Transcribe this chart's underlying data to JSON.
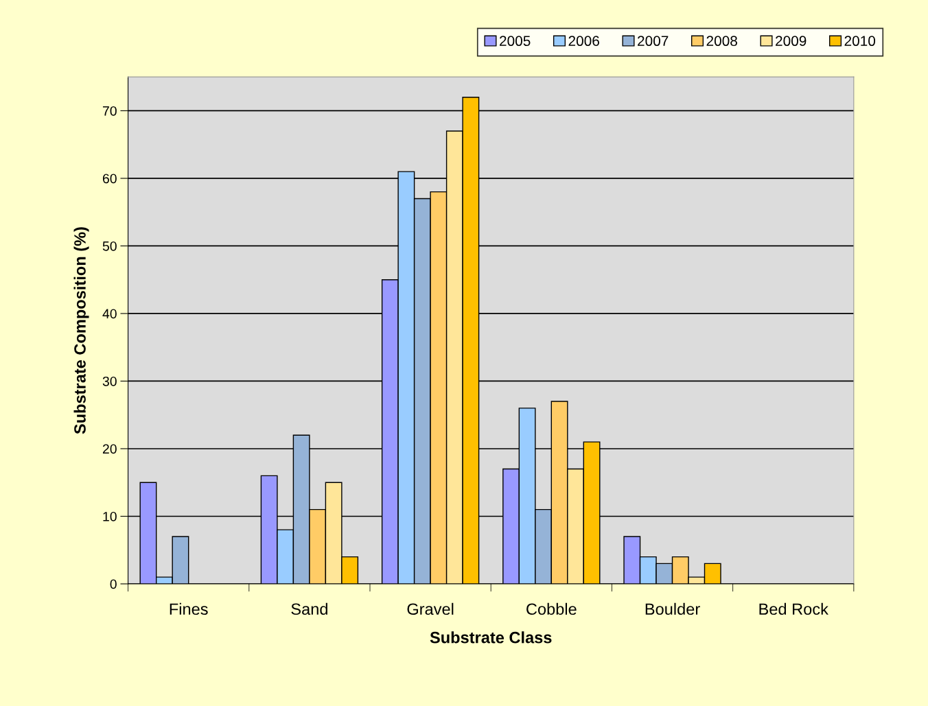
{
  "chart_data": {
    "type": "bar",
    "xlabel": "Substrate Class",
    "ylabel": "Substrate Composition (%)",
    "categories": [
      "Fines",
      "Sand",
      "Gravel",
      "Cobble",
      "Boulder",
      "Bed Rock"
    ],
    "series": [
      {
        "name": "2005",
        "color": "#9999ff",
        "values": [
          15,
          16,
          45,
          17,
          7,
          null
        ]
      },
      {
        "name": "2006",
        "color": "#99ccff",
        "values": [
          1,
          8,
          61,
          26,
          4,
          null
        ]
      },
      {
        "name": "2007",
        "color": "#95b3d7",
        "values": [
          7,
          22,
          57,
          11,
          3,
          null
        ]
      },
      {
        "name": "2008",
        "color": "#ffcc66",
        "values": [
          null,
          11,
          58,
          27,
          4,
          null
        ]
      },
      {
        "name": "2009",
        "color": "#ffe699",
        "values": [
          null,
          15,
          67,
          17,
          1,
          null
        ]
      },
      {
        "name": "2010",
        "color": "#ffc000",
        "values": [
          null,
          4,
          72,
          21,
          3,
          null
        ]
      }
    ],
    "ylim": [
      0,
      75
    ],
    "yticks": [
      0,
      10,
      20,
      30,
      40,
      50,
      60,
      70
    ],
    "grid": "y",
    "legend": "top"
  }
}
